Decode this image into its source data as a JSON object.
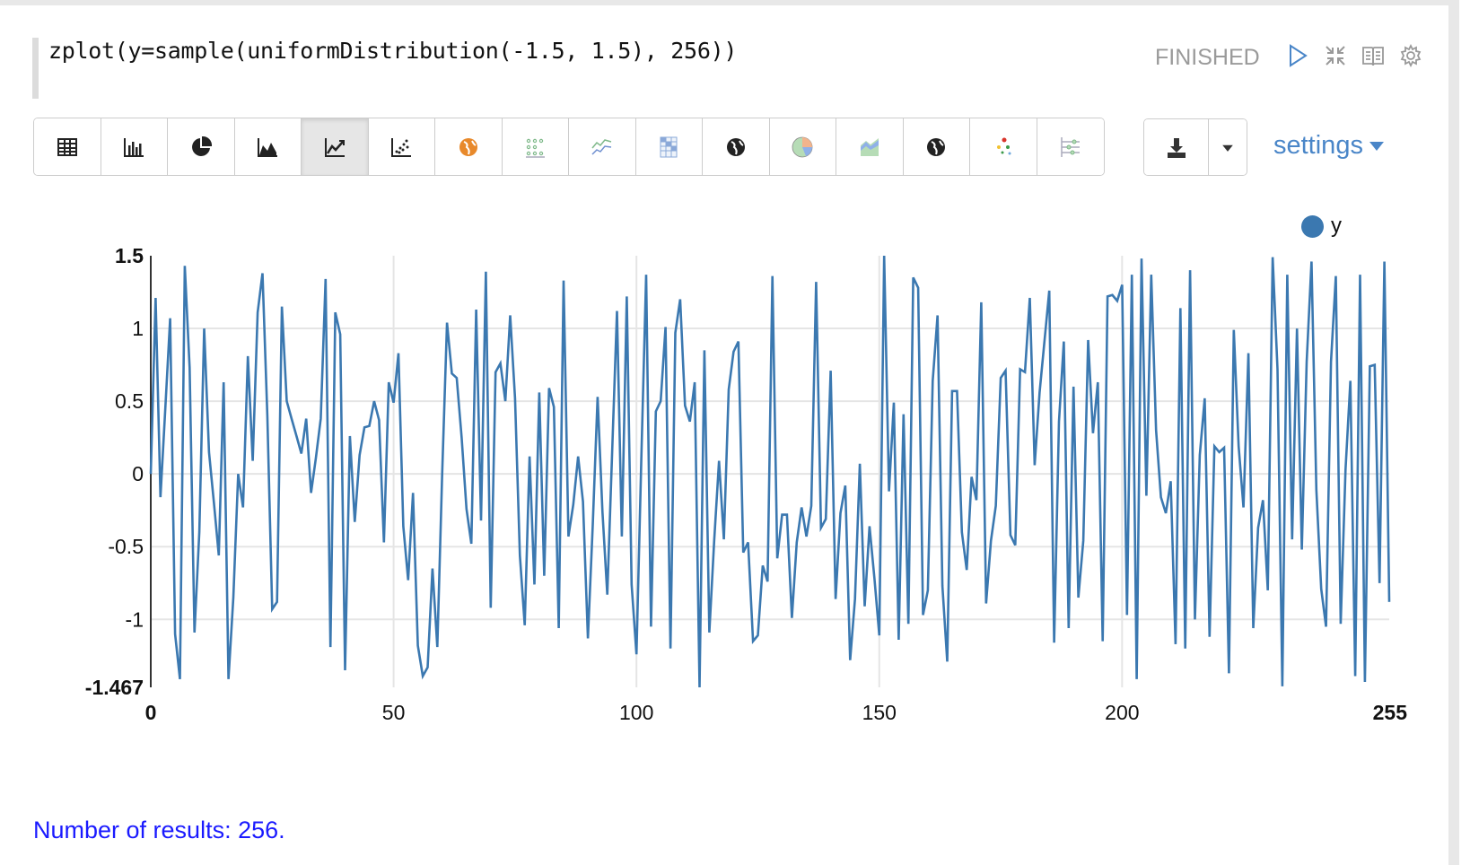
{
  "paragraph": {
    "code": "zplot(y=sample(uniformDistribution(-1.5, 1.5), 256))",
    "status": "FINISHED",
    "header_icons": [
      "play-icon",
      "collapse-icon",
      "book-icon",
      "gear-icon"
    ]
  },
  "toolbar": {
    "buttons": [
      {
        "icon": "table-icon"
      },
      {
        "icon": "bar-chart-icon"
      },
      {
        "icon": "pie-chart-icon"
      },
      {
        "icon": "area-chart-icon"
      },
      {
        "icon": "line-chart-icon",
        "active": true
      },
      {
        "icon": "scatter-chart-icon"
      },
      {
        "icon": "globe-orange-icon"
      },
      {
        "icon": "dot-grid-icon"
      },
      {
        "icon": "multi-line-icon"
      },
      {
        "icon": "heatmap-icon"
      },
      {
        "icon": "globe-icon"
      },
      {
        "icon": "pie-color-icon"
      },
      {
        "icon": "stacked-area-icon"
      },
      {
        "icon": "globe-icon"
      },
      {
        "icon": "bubble-icon"
      },
      {
        "icon": "slider-icon"
      }
    ],
    "download_icon": "download-icon",
    "dropdown_icon": "caret-down-icon",
    "settings_label": "settings"
  },
  "chart_data": {
    "type": "line",
    "legend": {
      "entries": [
        "y"
      ],
      "placement": "top-right"
    },
    "series": [
      {
        "name": "y",
        "color": "#3b78b0",
        "values": [
          0,
          1.21,
          -0.16,
          0.45,
          1.07,
          -1.1,
          -1.41,
          1.43,
          0.73,
          -1.09,
          -0.4,
          1.0,
          0.15,
          -0.2,
          -0.56,
          0.63,
          -1.41,
          -0.85,
          0,
          -0.23,
          0.81,
          0.09,
          1.11,
          1.38,
          0.4,
          -0.93,
          -0.88,
          1.15,
          0.5,
          0.38,
          0.26,
          0.14,
          0.38,
          -0.13,
          0.11,
          0.38,
          1.34,
          -1.19,
          1.11,
          0.96,
          -1.35,
          0.26,
          -0.33,
          0.13,
          0.32,
          0.33,
          0.5,
          0.37,
          -0.47,
          0.63,
          0.49,
          0.83,
          -0.36,
          -0.73,
          -0.13,
          -1.18,
          -1.39,
          -1.33,
          -0.65,
          -1.19,
          0.0,
          1.04,
          0.69,
          0.66,
          0.25,
          -0.24,
          -0.48,
          1.13,
          -0.32,
          1.39,
          -0.92,
          0.7,
          0.76,
          0.5,
          1.09,
          0.52,
          -0.56,
          -1.04,
          0.12,
          -0.76,
          0.56,
          -0.7,
          0.59,
          0.46,
          -1.06,
          1.33,
          -0.43,
          -0.21,
          0.12,
          -0.19,
          -1.13,
          -0.35,
          0.53,
          -0.26,
          -0.83,
          0.15,
          1.12,
          -0.43,
          1.22,
          -0.76,
          -1.24,
          0.1,
          1.37,
          -1.05,
          0.43,
          0.5,
          1.01,
          -1.2,
          0.97,
          1.2,
          0.47,
          0.36,
          0.63,
          -1.467,
          0.85,
          -1.09,
          -0.46,
          0.09,
          -0.45,
          0.58,
          0.84,
          0.91,
          -0.54,
          -0.47,
          -1.15,
          -1.11,
          -0.63,
          -0.74,
          1.36,
          -0.58,
          -0.28,
          -0.28,
          -0.99,
          -0.47,
          -0.23,
          -0.43,
          -0.22,
          1.32,
          -0.37,
          -0.31,
          0.71,
          -0.86,
          -0.27,
          -0.08,
          -1.28,
          -0.86,
          0.07,
          -0.91,
          -0.36,
          -0.72,
          -1.11,
          1.5,
          -0.12,
          0.49,
          -1.14,
          0.41,
          -1.03,
          1.35,
          1.28,
          -0.97,
          -0.8,
          0.64,
          1.09,
          -0.77,
          -1.29,
          0.57,
          0.57,
          -0.4,
          -0.66,
          -0.02,
          -0.18,
          1.18,
          -0.89,
          -0.46,
          -0.22,
          0.66,
          0.71,
          -0.42,
          -0.49,
          0.72,
          0.7,
          1.21,
          0.06,
          0.56,
          0.91,
          1.26,
          -1.16,
          0.36,
          0.91,
          -1.06,
          0.6,
          -0.85,
          -0.46,
          0.92,
          0.28,
          0.63,
          -1.15,
          1.22,
          1.23,
          1.19,
          1.3,
          -0.97,
          1.37,
          -1.41,
          1.48,
          -0.15,
          1.37,
          0.3,
          -0.16,
          -0.27,
          -0.05,
          -1.17,
          1.14,
          -1.2,
          1.4,
          -1.0,
          0.13,
          0.52,
          -1.12,
          0.19,
          0.15,
          0.18,
          -1.37,
          0.99,
          0.19,
          -0.23,
          0.83,
          -1.06,
          -0.37,
          -0.18,
          -0.8,
          1.49,
          0.72,
          -1.46,
          1.37,
          -0.45,
          1.0,
          -0.52,
          0.77,
          1.46,
          -0.11,
          -0.79,
          -1.05,
          0.77,
          1.36,
          -1.03,
          0.03,
          0.64,
          -1.39,
          1.37,
          -1.43,
          0.74,
          0.75,
          -0.75,
          1.46,
          -0.88
        ]
      }
    ],
    "xlim": [
      0,
      255
    ],
    "ylim": [
      -1.467,
      1.5
    ],
    "x_ticks": [
      "0",
      "50",
      "100",
      "150",
      "200",
      "255"
    ],
    "y_ticks": [
      "1.5",
      "1",
      "0.5",
      "0",
      "-0.5",
      "-1",
      "-1.467"
    ],
    "x_tick_values": [
      0,
      50,
      100,
      150,
      200,
      255
    ],
    "y_tick_values": [
      1.5,
      1,
      0.5,
      0,
      -0.5,
      -1,
      -1.467
    ],
    "grid": true
  },
  "footer": {
    "results": "Number of results: 256."
  }
}
